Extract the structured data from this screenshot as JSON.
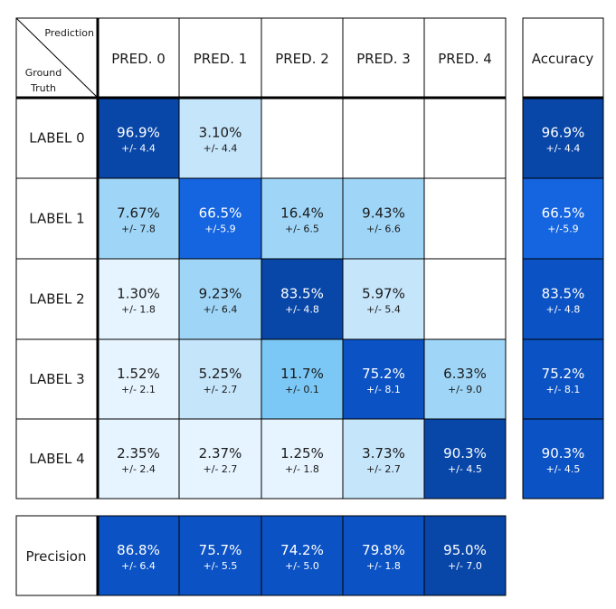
{
  "corner": {
    "top": "Prediction",
    "bottom_line1": "Ground",
    "bottom_line2": "Truth"
  },
  "accuracy_header": "Accuracy",
  "precision_label": "Precision",
  "colors": {
    "border": "#000000",
    "cell_empty": "#ffffff",
    "scale": [
      "#e6f4ff",
      "#c5e5fb",
      "#9fd6f8",
      "#7bc8f6",
      "#1565e0",
      "#0b52c4",
      "#0846a8"
    ],
    "text_dark": "#1a1a1a",
    "text_light": "#ffffff"
  },
  "chart_data": {
    "type": "heatmap",
    "title": "",
    "xlabel": "Prediction",
    "ylabel": "Ground Truth",
    "columns": [
      "PRED. 0",
      "PRED. 1",
      "PRED. 2",
      "PRED. 3",
      "PRED. 4"
    ],
    "rows": [
      "LABEL 0",
      "LABEL 1",
      "LABEL 2",
      "LABEL 3",
      "LABEL 4"
    ],
    "cells": [
      [
        {
          "value": "96.9%",
          "error": "+/- 4.4",
          "level": 6
        },
        {
          "value": "3.10%",
          "error": "+/- 4.4",
          "level": 1
        },
        null,
        null,
        null
      ],
      [
        {
          "value": "7.67%",
          "error": "+/- 7.8",
          "level": 2
        },
        {
          "value": "66.5%",
          "error": "+/-5.9",
          "level": 4
        },
        {
          "value": "16.4%",
          "error": "+/- 6.5",
          "level": 2
        },
        {
          "value": "9.43%",
          "error": "+/- 6.6",
          "level": 2
        },
        null
      ],
      [
        {
          "value": "1.30%",
          "error": "+/- 1.8",
          "level": 0
        },
        {
          "value": "9.23%",
          "error": "+/- 6.4",
          "level": 2
        },
        {
          "value": "83.5%",
          "error": "+/- 4.8",
          "level": 6
        },
        {
          "value": "5.97%",
          "error": "+/- 5.4",
          "level": 1
        },
        null
      ],
      [
        {
          "value": "1.52%",
          "error": "+/- 2.1",
          "level": 0
        },
        {
          "value": "5.25%",
          "error": "+/- 2.7",
          "level": 1
        },
        {
          "value": "11.7%",
          "error": "+/- 0.1",
          "level": 3
        },
        {
          "value": "75.2%",
          "error": "+/- 8.1",
          "level": 5
        },
        {
          "value": "6.33%",
          "error": "+/- 9.0",
          "level": 2
        }
      ],
      [
        {
          "value": "2.35%",
          "error": "+/- 2.4",
          "level": 0
        },
        {
          "value": "2.37%",
          "error": "+/- 2.7",
          "level": 0
        },
        {
          "value": "1.25%",
          "error": "+/- 1.8",
          "level": 0
        },
        {
          "value": "3.73%",
          "error": "+/- 2.7",
          "level": 1
        },
        {
          "value": "90.3%",
          "error": "+/- 4.5",
          "level": 6
        }
      ]
    ],
    "accuracy": [
      {
        "value": "96.9%",
        "error": "+/- 4.4",
        "level": 6
      },
      {
        "value": "66.5%",
        "error": "+/-5.9",
        "level": 4
      },
      {
        "value": "83.5%",
        "error": "+/- 4.8",
        "level": 5
      },
      {
        "value": "75.2%",
        "error": "+/- 8.1",
        "level": 5
      },
      {
        "value": "90.3%",
        "error": "+/- 4.5",
        "level": 5
      }
    ],
    "precision": [
      {
        "value": "86.8%",
        "error": "+/- 6.4",
        "level": 5
      },
      {
        "value": "75.7%",
        "error": "+/- 5.5",
        "level": 5
      },
      {
        "value": "74.2%",
        "error": "+/- 5.0",
        "level": 5
      },
      {
        "value": "79.8%",
        "error": "+/- 1.8",
        "level": 5
      },
      {
        "value": "95.0%",
        "error": "+/- 7.0",
        "level": 6
      }
    ]
  }
}
